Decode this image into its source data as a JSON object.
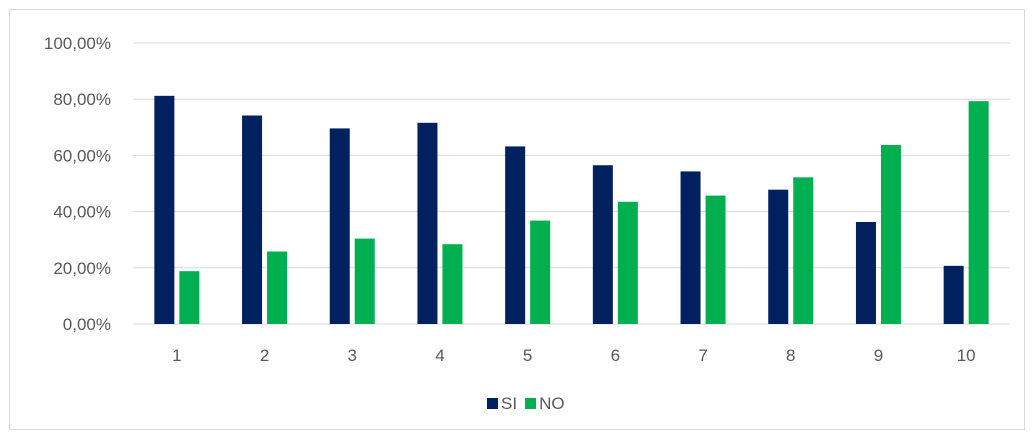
{
  "chart_data": {
    "type": "bar",
    "categories": [
      "1",
      "2",
      "3",
      "4",
      "5",
      "6",
      "7",
      "8",
      "9",
      "10"
    ],
    "series": [
      {
        "name": "SI",
        "color": "#002060",
        "values": [
          81.2,
          74.2,
          69.6,
          71.6,
          63.2,
          56.5,
          54.3,
          47.8,
          36.3,
          20.7
        ]
      },
      {
        "name": "NO",
        "color": "#00B050",
        "values": [
          18.8,
          25.8,
          30.4,
          28.4,
          36.8,
          43.5,
          45.7,
          52.2,
          63.7,
          79.3
        ]
      }
    ],
    "ylim": [
      0,
      100
    ],
    "yticks": [
      0,
      20,
      40,
      60,
      80,
      100
    ],
    "ytick_labels": [
      "0,00%",
      "20,00%",
      "40,00%",
      "60,00%",
      "80,00%",
      "100,00%"
    ],
    "grid": true,
    "legend": "bottom",
    "gridline_color": "#d9d9d9"
  }
}
